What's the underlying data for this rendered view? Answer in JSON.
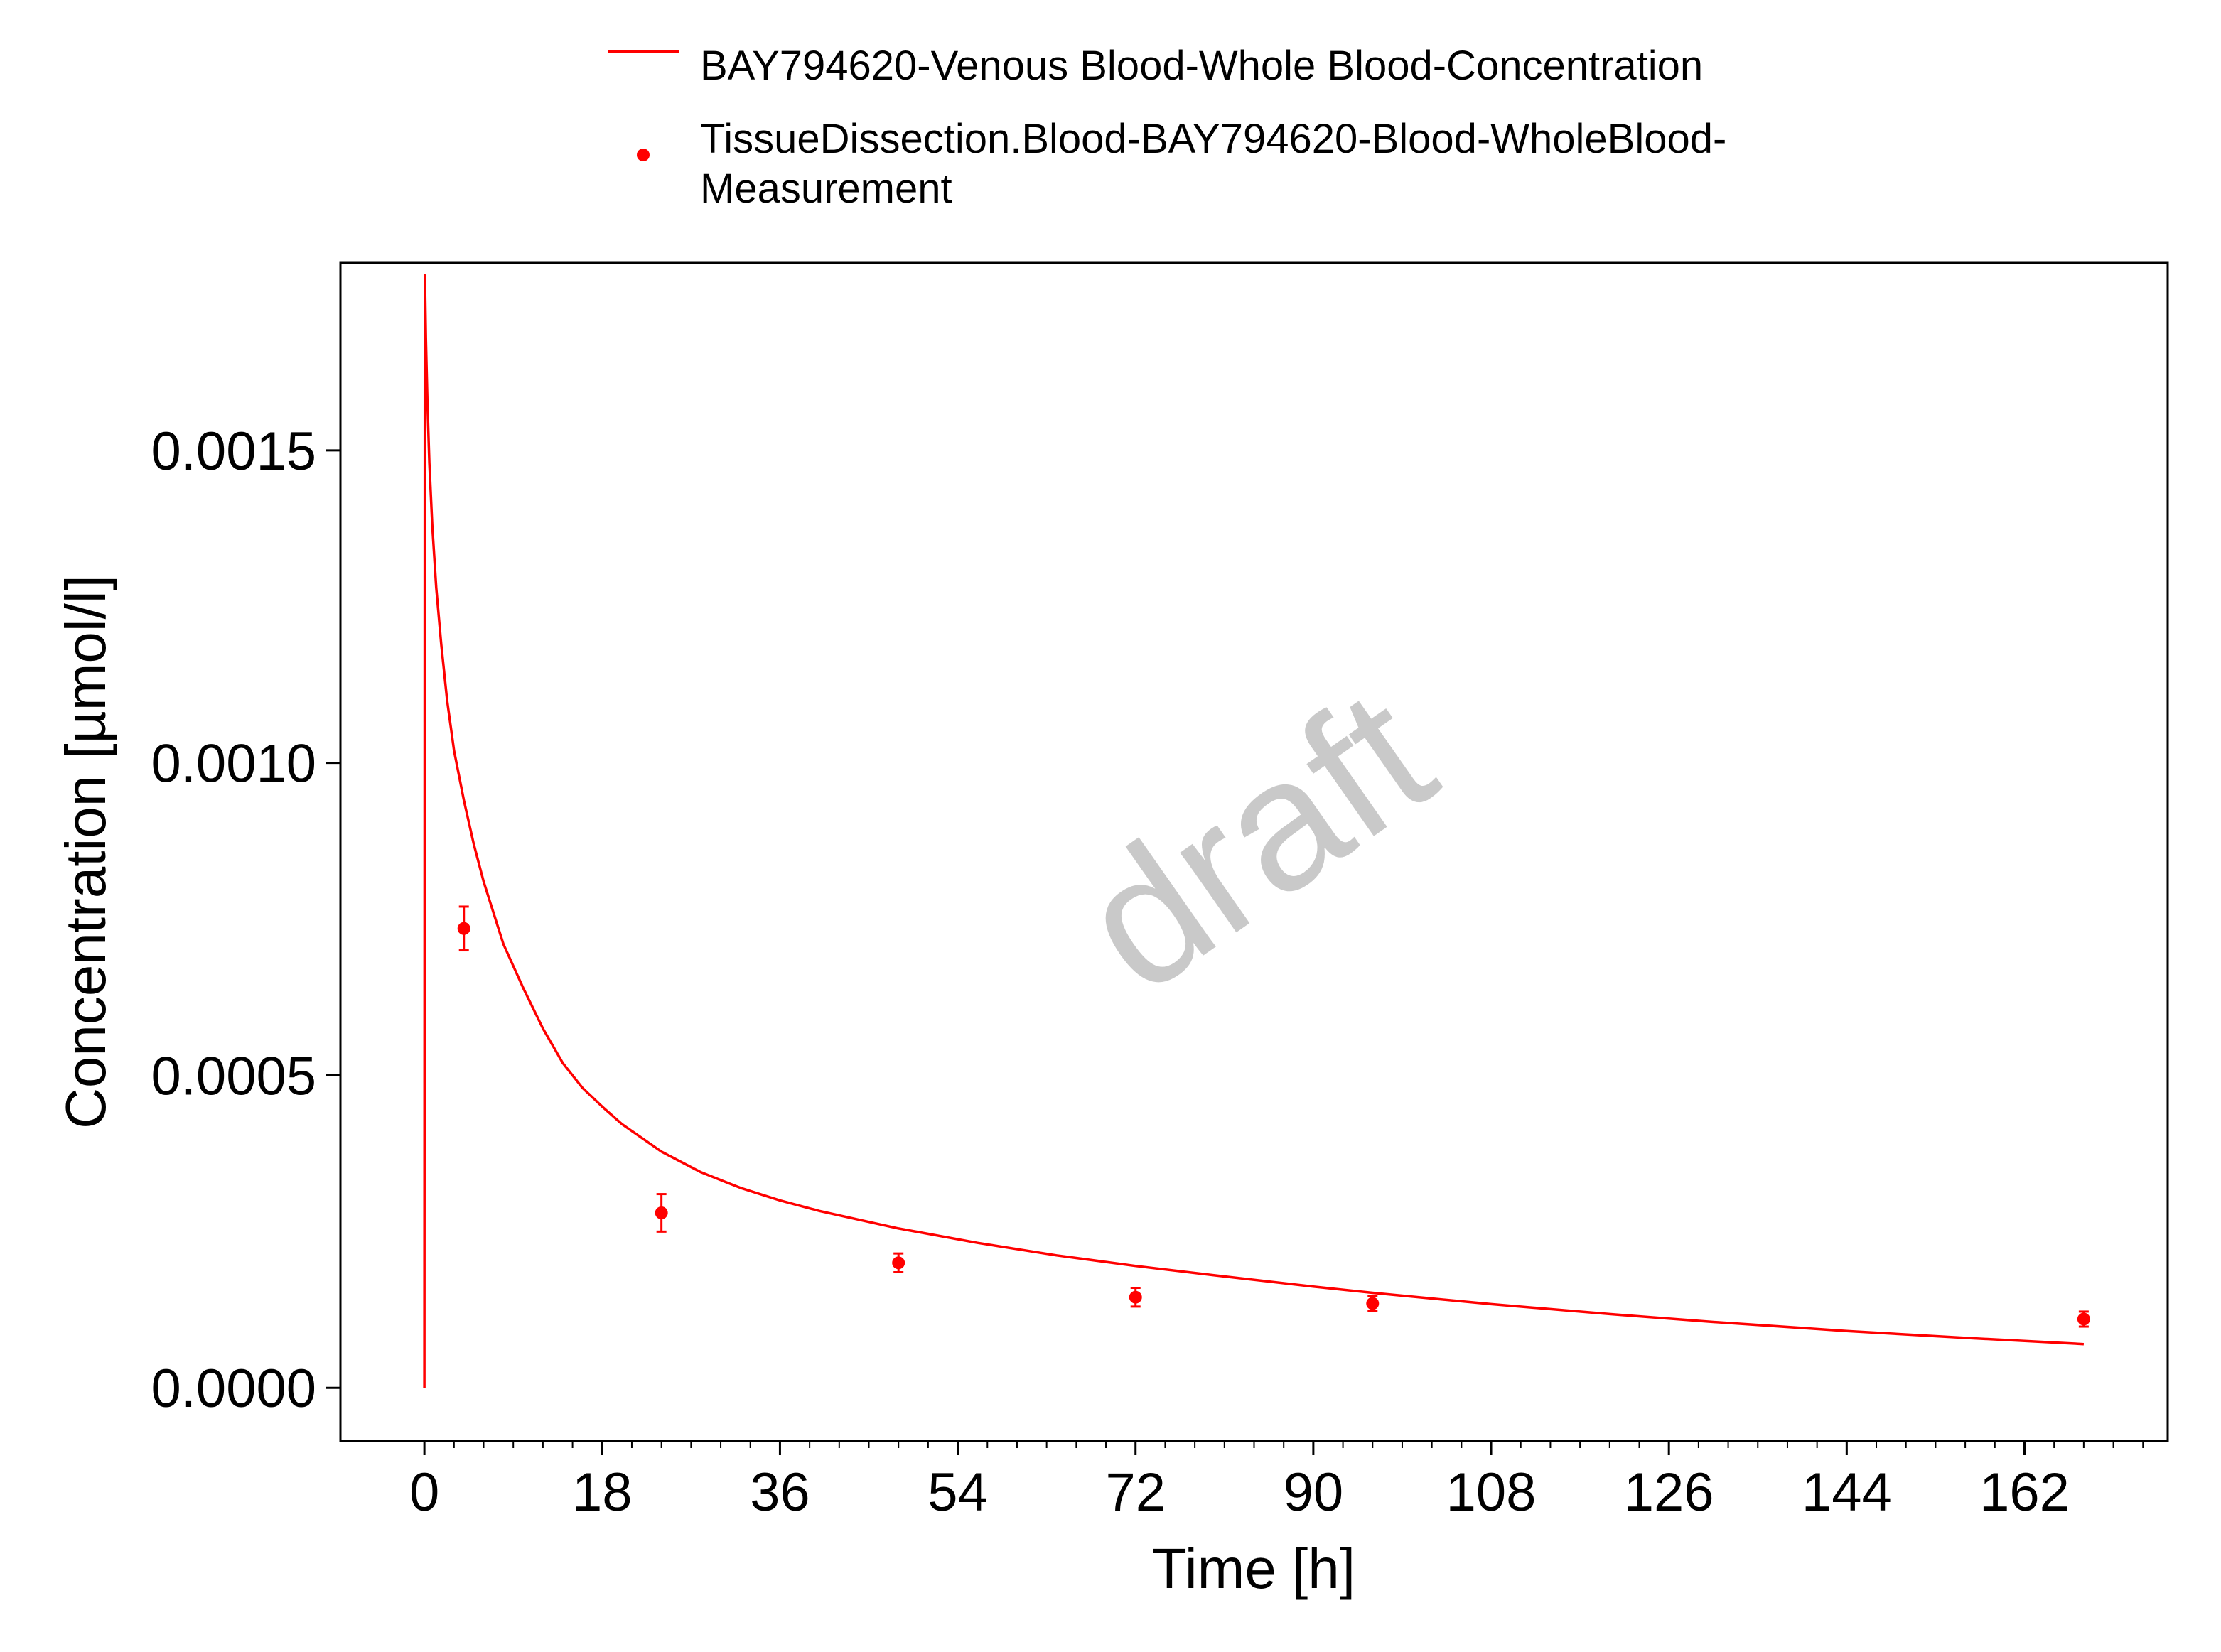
{
  "colors": {
    "series": "#ff0000",
    "watermark": "#c9c9c9",
    "axis": "#000000"
  },
  "watermark": "draft",
  "legend": {
    "placement": "top",
    "items": [
      {
        "kind": "line",
        "lines": [
          "BAY794620-Venous Blood-Whole Blood-Concentration"
        ]
      },
      {
        "kind": "point",
        "lines": [
          "TissueDissection.Blood-BAY794620-Blood-WholeBlood-",
          "Measurement"
        ]
      }
    ]
  },
  "chart_data": {
    "type": "line",
    "xlabel": "Time [h]",
    "ylabel": "Concentration [µmol/l]",
    "xlim": [
      -8.5,
      176.5
    ],
    "ylim": [
      -8.5e-05,
      0.0018
    ],
    "x_ticks": [
      0,
      18,
      36,
      54,
      72,
      90,
      108,
      126,
      144,
      162
    ],
    "x_minor_step": 3,
    "y_ticks": [
      0.0,
      0.0005,
      0.001,
      0.0015
    ],
    "y_tick_labels": [
      "0.0000",
      "0.0005",
      "0.0010",
      "0.0015"
    ],
    "grid": false,
    "series": [
      {
        "name": "BAY794620-Venous Blood-Whole Blood-Concentration",
        "kind": "line",
        "x": [
          0,
          0.05,
          0.15,
          0.3,
          0.5,
          0.8,
          1.2,
          1.7,
          2.3,
          3,
          4,
          5,
          6,
          8,
          10,
          12,
          14,
          16,
          18,
          20,
          24,
          28,
          32,
          36,
          40,
          48,
          56,
          64,
          72,
          80,
          90,
          96,
          108,
          120,
          130,
          144,
          156,
          168
        ],
        "y": [
          0.0,
          0.00178,
          0.00168,
          0.00158,
          0.00148,
          0.00138,
          0.00128,
          0.00119,
          0.0011,
          0.00102,
          0.00094,
          0.00087,
          0.00081,
          0.00071,
          0.00064,
          0.000575,
          0.00052,
          0.00048,
          0.00045,
          0.000422,
          0.000378,
          0.000345,
          0.00032,
          0.0003,
          0.000283,
          0.000255,
          0.000232,
          0.000212,
          0.000195,
          0.00018,
          0.000162,
          0.000152,
          0.000134,
          0.000118,
          0.000106,
          9.1e-05,
          8e-05,
          7e-05
        ]
      },
      {
        "name": "TissueDissection.Blood-BAY794620-Blood-WholeBlood-Measurement",
        "kind": "scatter",
        "x": [
          4,
          24,
          48,
          72,
          96,
          168
        ],
        "y": [
          0.000735,
          0.00028,
          0.0002,
          0.000145,
          0.000135,
          0.00011
        ],
        "error": [
          3.5e-05,
          3e-05,
          1.5e-05,
          1.5e-05,
          1.2e-05,
          1.2e-05
        ]
      }
    ]
  }
}
